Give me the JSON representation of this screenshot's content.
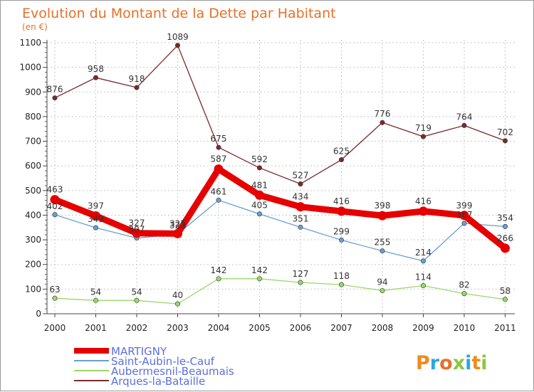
{
  "chart_data": {
    "type": "line",
    "title": "Evolution du Montant de la Dette par Habitant",
    "subtitle": "(en €)",
    "x": [
      "2000",
      "2001",
      "2002",
      "2003",
      "2004",
      "2005",
      "2006",
      "2007",
      "2008",
      "2009",
      "2010",
      "2011"
    ],
    "yticks": [
      "0",
      "100",
      "200",
      "300",
      "400",
      "500",
      "600",
      "700",
      "800",
      "900",
      "1000",
      "1100"
    ],
    "ylim": [
      0,
      1100
    ],
    "grid": true,
    "legend_position": "bottom-left",
    "series": [
      {
        "name": "MARTIGNY",
        "color": "#e60000",
        "emphasis": true,
        "values": [
          463,
          397,
          327,
          325,
          587,
          481,
          434,
          416,
          398,
          416,
          399,
          266
        ],
        "labels": [
          "463",
          "397",
          "327",
          "325",
          "587",
          "481",
          "434",
          "416",
          "398",
          "416",
          "399",
          "266"
        ]
      },
      {
        "name": "Saint-Aubin-le-Cauf",
        "color": "#6a9fd0",
        "values": [
          402,
          349,
          307,
          323,
          461,
          405,
          351,
          299,
          255,
          214,
          367,
          354
        ],
        "labels": [
          "402",
          "349",
          "307",
          "323",
          "461",
          "405",
          "351",
          "299",
          "255",
          "214",
          "367",
          "354"
        ]
      },
      {
        "name": "Aubermesnil-Beaumais",
        "color": "#9ad86a",
        "values": [
          63,
          54,
          54,
          40,
          142,
          142,
          127,
          118,
          94,
          114,
          82,
          58
        ],
        "labels": [
          "63",
          "54",
          "54",
          "40",
          "142",
          "142",
          "127",
          "118",
          "94",
          "114",
          "82",
          "58"
        ]
      },
      {
        "name": "Arques-la-Bataille",
        "color": "#7a2a2a",
        "values": [
          876,
          958,
          918,
          1089,
          675,
          592,
          527,
          625,
          776,
          719,
          764,
          702
        ],
        "labels": [
          "876",
          "958",
          "918",
          "1089",
          "675",
          "592",
          "527",
          "625",
          "776",
          "719",
          "764",
          "702"
        ]
      }
    ]
  },
  "brand": {
    "text": "Proxiti",
    "letter_colors": [
      "#f08a1c",
      "#2aa7e0",
      "#e8702a",
      "#8cc63f",
      "#2aa7e0",
      "#f08a1c",
      "#8cc63f"
    ]
  }
}
